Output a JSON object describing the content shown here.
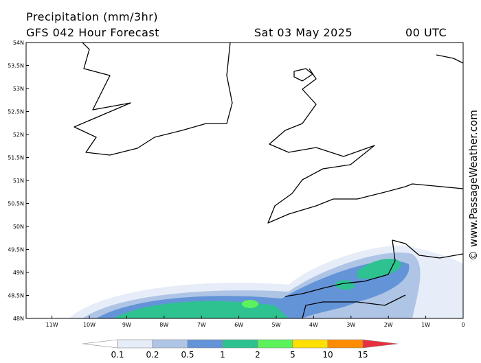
{
  "header": {
    "title": "Precipitation (mm/3hr)",
    "subtitle": "GFS 042 Hour Forecast",
    "date": "Sat 03 May 2025",
    "time": "00 UTC"
  },
  "map": {
    "lat_labels": [
      "54N",
      "53.5N",
      "53N",
      "52.5N",
      "52N",
      "51.5N",
      "51N",
      "50.5N",
      "50N",
      "49.5N",
      "49N",
      "48.5N",
      "48N"
    ],
    "lon_labels": [
      "11W",
      "10W",
      "9W",
      "8W",
      "7W",
      "6W",
      "5W",
      "4W",
      "3W",
      "2W",
      "1W",
      "0"
    ]
  },
  "legend": {
    "labels": [
      "0.1",
      "0.2",
      "0.5",
      "1",
      "2",
      "5",
      "10",
      "15"
    ],
    "colors": [
      "#ffffff",
      "#e6edf8",
      "#afc5e6",
      "#6494d8",
      "#2ec290",
      "#5cf25c",
      "#ffe000",
      "#ff8c00",
      "#e83040"
    ]
  },
  "credit": "© www.PassageWeather.com"
}
